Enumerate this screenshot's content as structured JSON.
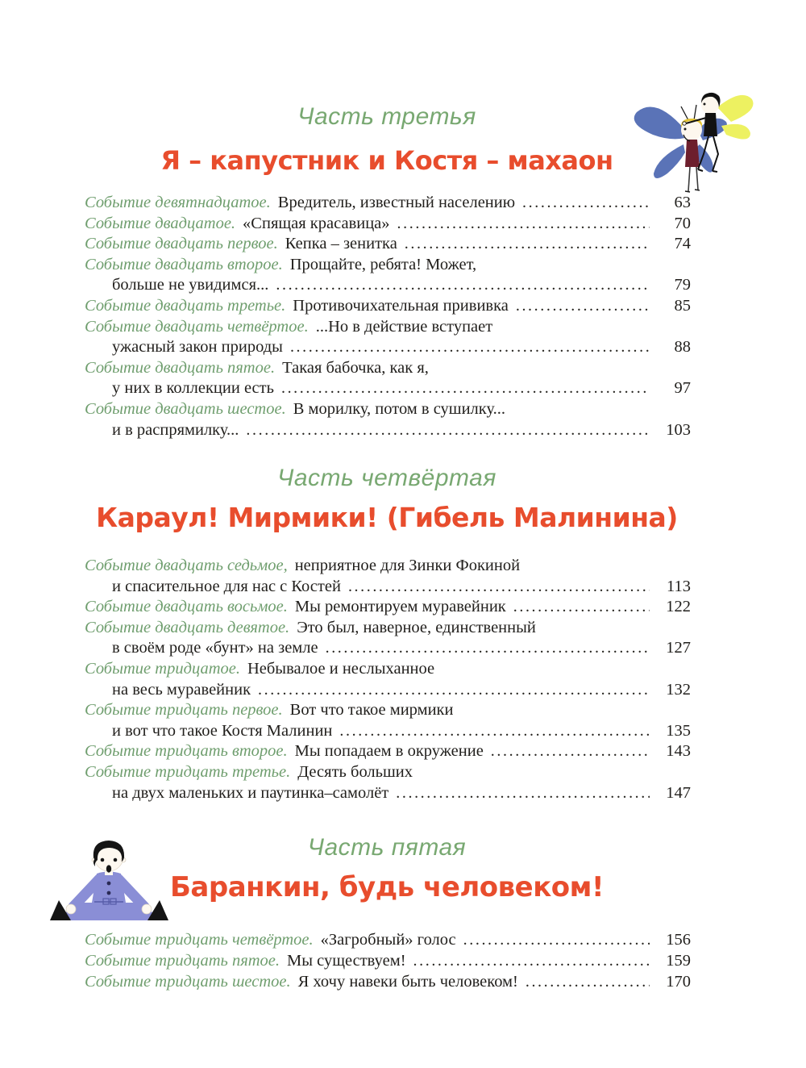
{
  "document": {
    "type": "book-table-of-contents",
    "language": "ru"
  },
  "colors": {
    "background": "#ffffff",
    "part_heading_green": "#78a871",
    "entry_label_green": "#6f9e6e",
    "title_red": "#e84d2d",
    "body_text": "#211f1c",
    "blue_wings": "#5a73b7",
    "yellow_wings": "#edf161",
    "blond_hair": "#e3c437",
    "maroon_shirt": "#6d1f2d",
    "boy_suit_blue": "#8a8ed6"
  },
  "sections": [
    {
      "part_label": "Часть третья",
      "title": "Я – капустник и Костя – махаон",
      "entries": [
        {
          "label": "Событие девятнадцатое.",
          "line1": "Вредитель, известный населению",
          "page": "63"
        },
        {
          "label": "Событие двадцатое.",
          "line1": "«Спящая красавица»",
          "page": "70"
        },
        {
          "label": "Событие двадцать первое.",
          "line1": "Кепка – зенитка",
          "page": "74"
        },
        {
          "label": "Событие двадцать второе.",
          "line1": "Прощайте, ребята! Может,",
          "line2": "больше не увидимся...",
          "page": "79"
        },
        {
          "label": "Событие двадцать третье.",
          "line1": "Противочихательная прививка",
          "page": "85"
        },
        {
          "label": "Событие двадцать четвёртое.",
          "line1": "...Но в действие вступает",
          "line2": "ужасный закон природы",
          "page": "88"
        },
        {
          "label": "Событие двадцать пятое.",
          "line1": "Такая бабочка, как я,",
          "line2": "у них в коллекции есть",
          "page": "97"
        },
        {
          "label": "Событие двадцать шестое.",
          "line1": "В морилку, потом в сушилку...",
          "line2": "и в распрямилку...",
          "page": "103"
        }
      ]
    },
    {
      "part_label": "Часть четвёртая",
      "title": "Караул! Мирмики! (Гибель Малинина)",
      "entries": [
        {
          "label": "Событие двадцать седьмое,",
          "line1": "неприятное для Зинки Фокиной",
          "line2": "и спасительное для нас с Костей",
          "page": "113"
        },
        {
          "label": "Событие двадцать восьмое.",
          "line1": "Мы ремонтируем муравейник",
          "page": "122"
        },
        {
          "label": "Событие двадцать девятое.",
          "line1": "Это был, наверное, единственный",
          "line2": "в своём роде «бунт» на земле",
          "page": "127"
        },
        {
          "label": "Событие тридцатое.",
          "line1": "Небывалое и неслыханное",
          "line2": "на весь муравейник",
          "page": "132"
        },
        {
          "label": "Событие тридцать первое.",
          "line1": "Вот что такое мирмики",
          "line2": "и вот что такое Костя Малинин",
          "page": "135"
        },
        {
          "label": "Событие тридцать второе.",
          "line1": "Мы попадаем в окружение",
          "page": "143"
        },
        {
          "label": "Событие тридцать третье.",
          "line1": "Десять больших",
          "line2": "на двух маленьких и паутинка–самолёт",
          "page": "147"
        }
      ]
    },
    {
      "part_label": "Часть пятая",
      "title": "Баранкин, будь человеком!",
      "entries": [
        {
          "label": "Событие тридцать четвёртое.",
          "line1": "«Загробный» голос",
          "page": "156"
        },
        {
          "label": "Событие тридцать пятое.",
          "line1": "Мы существуем!",
          "page": "159"
        },
        {
          "label": "Событие тридцать шестое.",
          "line1": "Я хочу навеки быть человеком!",
          "page": "170"
        }
      ]
    }
  ],
  "illustrations": {
    "butterfly_boys": "Два мальчика-бабочки: блондин с синими крыльями капустника и тёмноволосый с жёлтыми крыльями махаона",
    "sitting_boy": "Удивлённый мальчик в голубом костюме, сидящий с раскинутыми ногами"
  }
}
